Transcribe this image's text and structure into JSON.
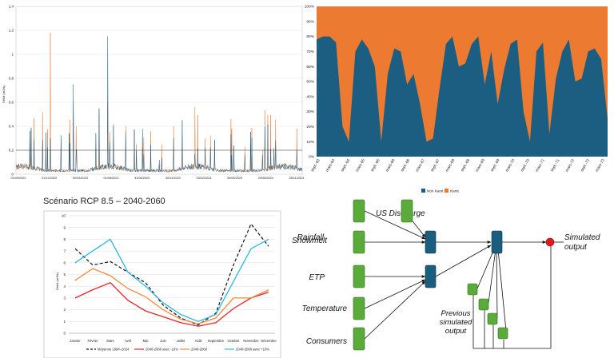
{
  "chart_data": [
    {
      "type": "line",
      "ylabel": "Débit (m3/s)",
      "ylim": [
        0,
        1.4
      ],
      "yticks": [
        "0",
        "0.2",
        "0.4",
        "0.6",
        "0.8",
        "1",
        "1.2",
        "1.4"
      ],
      "xticks": [
        "01/09/2022",
        "01/12/2022",
        "02/03/2023",
        "01/06/2023",
        "31/08/2023",
        "30/11/2023",
        "29/02/2024",
        "30/05/2024",
        "29/08/2024",
        "28/11/2024"
      ],
      "series": [
        {
          "color": "#e87e3a"
        },
        {
          "color": "#1f5f88"
        }
      ],
      "threshold": 0.2
    },
    {
      "type": "area",
      "ylim": [
        0,
        100
      ],
      "yticks": [
        "0%",
        "10%",
        "20%",
        "30%",
        "40%",
        "50%",
        "60%",
        "70%",
        "80%",
        "90%",
        "100%"
      ],
      "xticks": [
        "sept.-63",
        "mars-64",
        "sept.-64",
        "mars-65",
        "sept.-65",
        "mars-66",
        "sept.-66",
        "mars-67",
        "sept.-67",
        "mars-68",
        "sept.-68",
        "mars-69",
        "sept.-69",
        "mars-70",
        "sept.-70",
        "mars-71",
        "sept.-71",
        "mars-72",
        "sept.-72",
        "mars-73"
      ],
      "series": [
        {
          "name": "Non Karst",
          "color": "#1b5e82",
          "values": [
            78,
            80,
            80,
            76,
            20,
            10,
            70,
            78,
            72,
            60,
            10,
            55,
            72,
            70,
            48,
            55,
            35,
            10,
            12,
            45,
            75,
            80,
            60,
            62,
            75,
            80,
            48,
            70,
            35,
            58,
            75,
            78,
            30,
            10,
            70,
            76,
            15,
            52,
            70,
            78,
            50,
            52,
            70,
            72,
            65,
            25
          ]
        },
        {
          "name": "Karst",
          "color": "#ec7a30"
        }
      ],
      "legend": "bottom"
    },
    {
      "type": "line",
      "title": "Scénario RCP 8.5 – 2040-2060",
      "ylabel": "Débit (m3/s)",
      "ylim": [
        0,
        10
      ],
      "yticks": [
        "0",
        "1",
        "2",
        "3",
        "4",
        "5",
        "6",
        "7",
        "8",
        "9",
        "10"
      ],
      "categories": [
        "Janvier",
        "Février",
        "Mars",
        "Avril",
        "Mai",
        "Juin",
        "Juillet",
        "Août",
        "Septembre",
        "Octobre",
        "Novembre",
        "Décembre"
      ],
      "series": [
        {
          "name": "Moyenne 1994–2024",
          "color": "#111111",
          "values": [
            7.2,
            5.8,
            6.1,
            5.2,
            4.3,
            2.4,
            1.3,
            0.7,
            1.7,
            5.8,
            9.3,
            7.4
          ]
        },
        {
          "name": "2040-2060 avec -10%",
          "color": "#e8252a",
          "values": [
            3.0,
            3.7,
            4.3,
            2.8,
            1.9,
            1.4,
            0.9,
            0.6,
            0.9,
            2.1,
            3.0,
            3.5
          ]
        },
        {
          "name": "2040-2060",
          "color": "#f08a3c",
          "values": [
            4.5,
            5.5,
            4.9,
            3.8,
            3.1,
            2.0,
            1.2,
            0.8,
            1.3,
            3.0,
            3.0,
            3.7
          ]
        },
        {
          "name": "2040-2060 avec +10%",
          "color": "#2ab7e6",
          "values": [
            6.0,
            7.0,
            8.0,
            5.2,
            4.0,
            2.6,
            1.6,
            1.0,
            1.6,
            4.4,
            7.2,
            8.0
          ]
        }
      ],
      "legend": "bottom"
    }
  ],
  "diagram": {
    "inputs": [
      "Rainfall",
      "Snowmelt",
      "ETP",
      "Temperature",
      "Consumers"
    ],
    "us_discharge": "US Discharge",
    "output": "Simulated output",
    "feedback": "Previous simulated output",
    "colors": {
      "input": "#5aab3a",
      "hidden": "#1a5d7e",
      "output": "#e8141c"
    }
  }
}
